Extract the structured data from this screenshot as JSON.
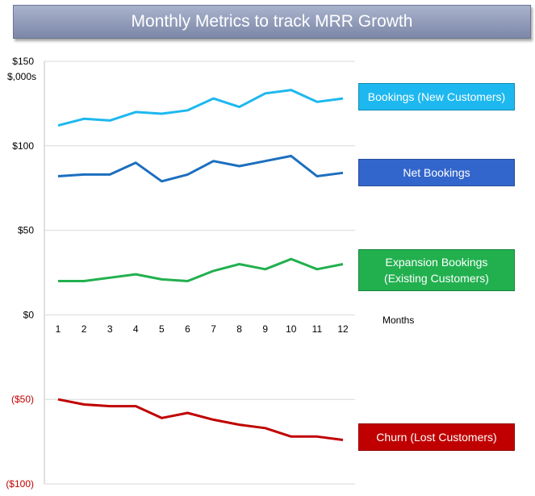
{
  "title": "Monthly Metrics to track MRR Growth",
  "chart_data": {
    "type": "line",
    "ylabel": "$,000s",
    "xlabel": "Months",
    "ylim": [
      -100,
      150
    ],
    "yticks": [
      {
        "value": 150,
        "label": "$150"
      },
      {
        "value": 100,
        "label": "$100"
      },
      {
        "value": 50,
        "label": "$50"
      },
      {
        "value": 0,
        "label": "$0"
      },
      {
        "value": -50,
        "label": "($50)"
      },
      {
        "value": -100,
        "label": "($100)"
      }
    ],
    "categories": [
      "1",
      "2",
      "3",
      "4",
      "5",
      "6",
      "7",
      "8",
      "9",
      "10",
      "11",
      "12"
    ],
    "grid": true,
    "series": [
      {
        "name": "Bookings (New Customers)",
        "color": "#1db8f0",
        "label_color": "#1db8f0",
        "values": [
          112,
          116,
          115,
          120,
          119,
          121,
          128,
          123,
          131,
          133,
          126,
          128
        ]
      },
      {
        "name": "Net Bookings",
        "color": "#1c6fbf",
        "label_color": "#3366cc",
        "values": [
          82,
          83,
          83,
          90,
          79,
          83,
          91,
          88,
          91,
          94,
          82,
          84
        ]
      },
      {
        "name": "Expansion Bookings (Existing Customers)",
        "label_lines": [
          "Expansion Bookings",
          "(Existing Customers)"
        ],
        "color": "#22b04f",
        "label_color": "#22b04f",
        "values": [
          20,
          20,
          22,
          24,
          21,
          20,
          26,
          30,
          27,
          33,
          27,
          30
        ]
      },
      {
        "name": "Churn (Lost Customers)",
        "color": "#c00000",
        "label_color": "#c00000",
        "values": [
          -50,
          -53,
          -54,
          -54,
          -61,
          -58,
          -62,
          -65,
          -67,
          -72,
          -72,
          -74
        ]
      }
    ]
  }
}
